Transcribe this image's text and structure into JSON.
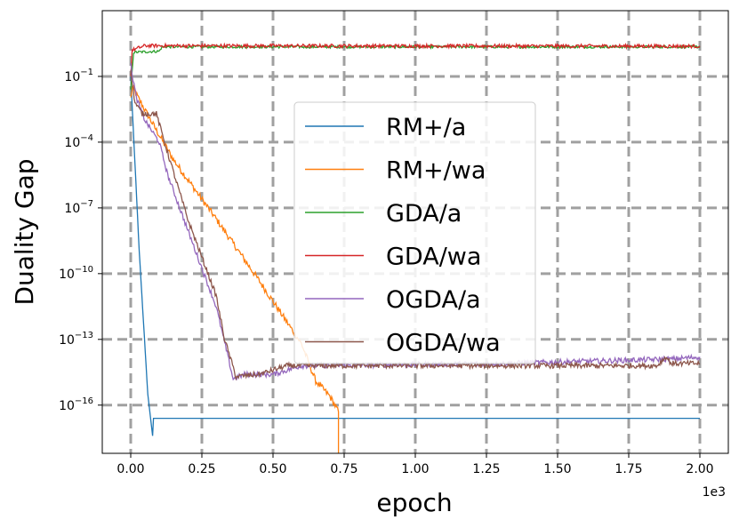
{
  "chart_data": {
    "type": "line",
    "title": "",
    "xlabel": "epoch",
    "ylabel": "Duality Gap",
    "x_offset_label": "1e3",
    "xlim": [
      -0.1,
      2.1
    ],
    "ylim_log10": [
      -18.2,
      2.0
    ],
    "yscale": "log",
    "grid": true,
    "legend_position": "center",
    "x_ticks": [
      {
        "value": 0.0,
        "label": "0.00"
      },
      {
        "value": 0.25,
        "label": "0.25"
      },
      {
        "value": 0.5,
        "label": "0.50"
      },
      {
        "value": 0.75,
        "label": "0.75"
      },
      {
        "value": 1.0,
        "label": "1.00"
      },
      {
        "value": 1.25,
        "label": "1.25"
      },
      {
        "value": 1.5,
        "label": "1.50"
      },
      {
        "value": 1.75,
        "label": "1.75"
      },
      {
        "value": 2.0,
        "label": "2.00"
      }
    ],
    "y_ticks": [
      {
        "exp": -1,
        "label_base": "10",
        "label_exp": "−1"
      },
      {
        "exp": -4,
        "label_base": "10",
        "label_exp": "−4"
      },
      {
        "exp": -7,
        "label_base": "10",
        "label_exp": "−7"
      },
      {
        "exp": -10,
        "label_base": "10",
        "label_exp": "−10"
      },
      {
        "exp": -13,
        "label_base": "10",
        "label_exp": "−13"
      },
      {
        "exp": -16,
        "label_base": "10",
        "label_exp": "−16"
      }
    ],
    "series": [
      {
        "name": "RM+/a",
        "color": "#1f77b4",
        "noise": 0,
        "points": [
          [
            0.0,
            -1.0
          ],
          [
            0.03,
            -9.0
          ],
          [
            0.06,
            -15.5
          ],
          [
            0.077,
            -17.4
          ],
          [
            0.08,
            -16.6
          ],
          [
            2.0,
            -16.6
          ]
        ]
      },
      {
        "name": "RM+/wa",
        "color": "#ff7f0e",
        "noise": 0.15,
        "points": [
          [
            0.0,
            -2.0
          ],
          [
            0.006,
            -1.5
          ],
          [
            0.07,
            -3.0
          ],
          [
            0.15,
            -4.8
          ],
          [
            0.3,
            -7.5
          ],
          [
            0.45,
            -10.3
          ],
          [
            0.6,
            -13.2
          ],
          [
            0.65,
            -14.9
          ],
          [
            0.7,
            -15.6
          ],
          [
            0.73,
            -16.3
          ],
          [
            0.73,
            -18.2
          ]
        ]
      },
      {
        "name": "GDA/a",
        "color": "#2ca02c",
        "noise": 0.06,
        "points": [
          [
            0.0,
            -1.6
          ],
          [
            0.01,
            0.1
          ],
          [
            0.1,
            0.15
          ],
          [
            0.11,
            0.35
          ],
          [
            2.0,
            0.35
          ]
        ]
      },
      {
        "name": "GDA/wa",
        "color": "#d62728",
        "noise": 0.08,
        "points": [
          [
            0.0,
            -1.0
          ],
          [
            0.005,
            0.2
          ],
          [
            0.05,
            0.4
          ],
          [
            2.0,
            0.38
          ]
        ]
      },
      {
        "name": "OGDA/a",
        "color": "#9467bd",
        "noise": 0.12,
        "points": [
          [
            0.0,
            -0.5
          ],
          [
            0.02,
            -2.0
          ],
          [
            0.05,
            -3.0
          ],
          [
            0.1,
            -4.0
          ],
          [
            0.13,
            -5.5
          ],
          [
            0.2,
            -8.0
          ],
          [
            0.3,
            -11.5
          ],
          [
            0.36,
            -14.8
          ],
          [
            0.4,
            -14.6
          ],
          [
            0.5,
            -14.6
          ],
          [
            0.6,
            -14.2
          ],
          [
            1.3,
            -14.1
          ],
          [
            1.9,
            -13.9
          ],
          [
            2.0,
            -13.8
          ]
        ]
      },
      {
        "name": "OGDA/wa",
        "color": "#8c564b",
        "noise": 0.12,
        "points": [
          [
            0.0,
            -0.8
          ],
          [
            0.015,
            -2.2
          ],
          [
            0.04,
            -2.7
          ],
          [
            0.09,
            -2.7
          ],
          [
            0.13,
            -4.5
          ],
          [
            0.2,
            -7.5
          ],
          [
            0.3,
            -11.0
          ],
          [
            0.33,
            -13.0
          ],
          [
            0.37,
            -14.7
          ],
          [
            0.45,
            -14.6
          ],
          [
            0.55,
            -14.2
          ],
          [
            1.3,
            -14.2
          ],
          [
            1.85,
            -14.2
          ],
          [
            1.88,
            -13.8
          ],
          [
            1.9,
            -14.1
          ],
          [
            2.0,
            -14.1
          ]
        ]
      }
    ]
  }
}
